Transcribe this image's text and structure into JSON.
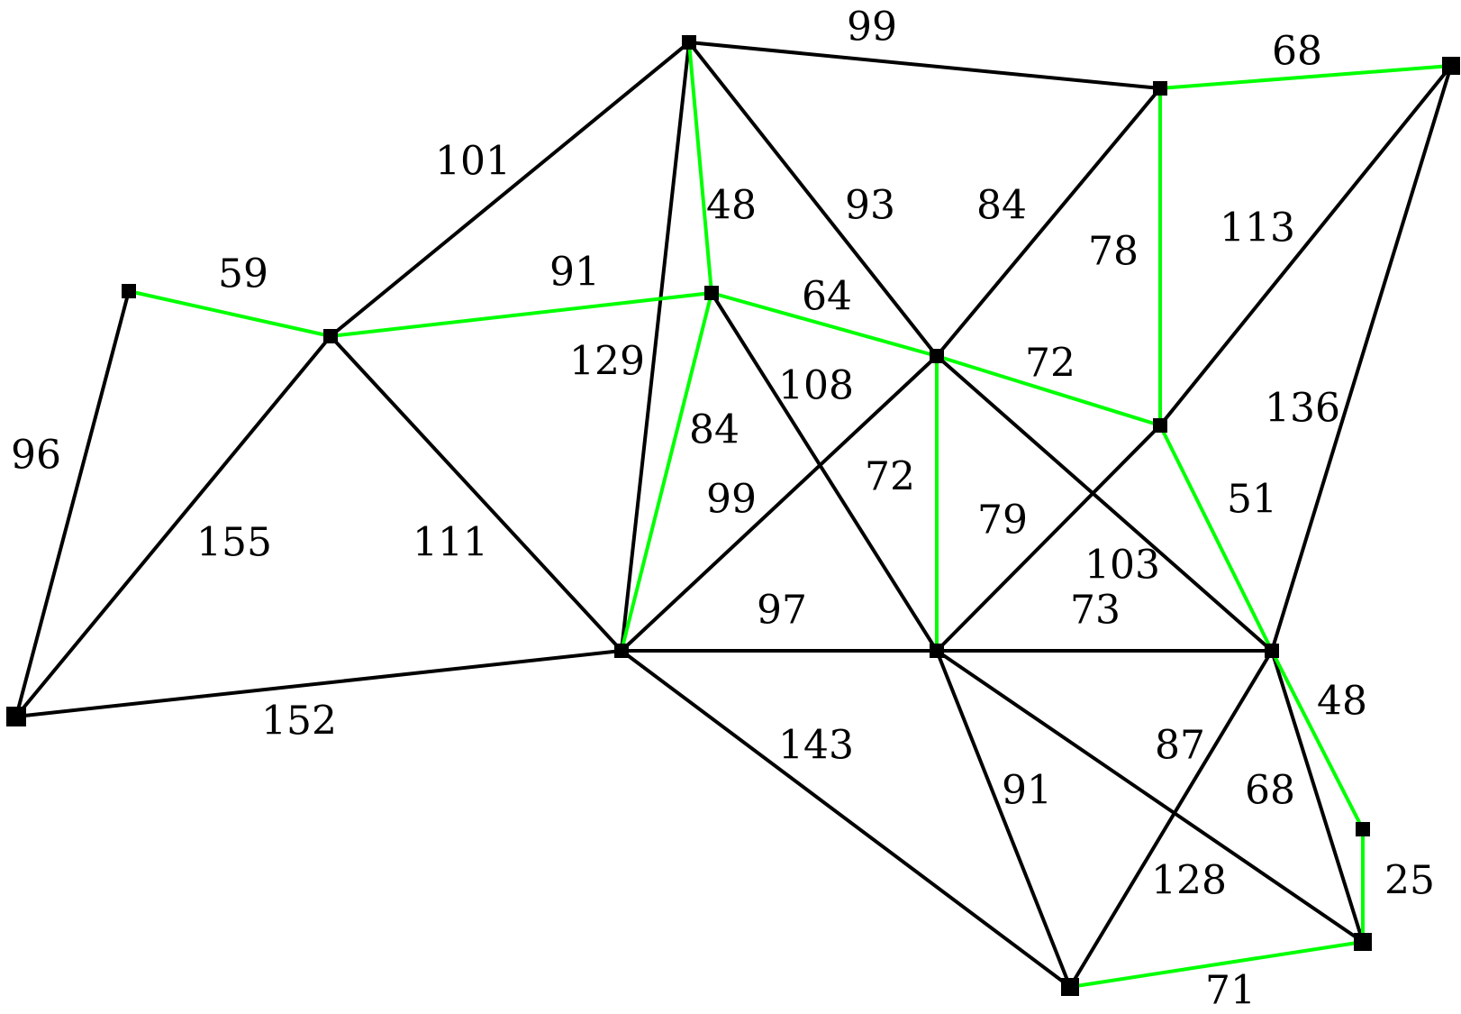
{
  "colors": {
    "background": "#ffffff",
    "edge_default": "#000000",
    "edge_highlight": "#00ff00",
    "node": "#000000",
    "label": "#000000"
  },
  "nodes": [
    {
      "id": "n1"
    },
    {
      "id": "n2"
    },
    {
      "id": "n3"
    },
    {
      "id": "n4"
    },
    {
      "id": "n5"
    },
    {
      "id": "n6"
    },
    {
      "id": "n7"
    },
    {
      "id": "n8"
    },
    {
      "id": "n9"
    },
    {
      "id": "n10"
    },
    {
      "id": "n11"
    },
    {
      "id": "n12"
    },
    {
      "id": "n13"
    },
    {
      "id": "n14"
    },
    {
      "id": "n15"
    },
    {
      "id": "n16"
    },
    {
      "id": "n17"
    }
  ],
  "edges": [
    {
      "from": "n1",
      "to": "n2",
      "weight": "99",
      "highlighted": false
    },
    {
      "from": "n2",
      "to": "n3",
      "weight": "68",
      "highlighted": true
    },
    {
      "from": "n1",
      "to": "n5",
      "weight": "101",
      "highlighted": false
    },
    {
      "from": "n1",
      "to": "n6",
      "weight": "48",
      "highlighted": true
    },
    {
      "from": "n1",
      "to": "n7",
      "weight": "93",
      "highlighted": false
    },
    {
      "from": "n1",
      "to": "n10",
      "weight": "129",
      "highlighted": false
    },
    {
      "from": "n2",
      "to": "n7",
      "weight": "84",
      "highlighted": false
    },
    {
      "from": "n2",
      "to": "n8",
      "weight": "78",
      "highlighted": true
    },
    {
      "from": "n3",
      "to": "n8",
      "weight": "113",
      "highlighted": false
    },
    {
      "from": "n3",
      "to": "n12",
      "weight": "136",
      "highlighted": false
    },
    {
      "from": "n4",
      "to": "n5",
      "weight": "59",
      "highlighted": true
    },
    {
      "from": "n4",
      "to": "n9",
      "weight": "96",
      "highlighted": false
    },
    {
      "from": "n5",
      "to": "n6",
      "weight": "91",
      "highlighted": true
    },
    {
      "from": "n5",
      "to": "n9",
      "weight": "155",
      "highlighted": false
    },
    {
      "from": "n5",
      "to": "n10",
      "weight": "111",
      "highlighted": false
    },
    {
      "from": "n6",
      "to": "n7",
      "weight": "64",
      "highlighted": true
    },
    {
      "from": "n6",
      "to": "n10",
      "weight": "84",
      "highlighted": true
    },
    {
      "from": "n6",
      "to": "n11",
      "weight": "108",
      "highlighted": false
    },
    {
      "from": "n7",
      "to": "n8",
      "weight": "72",
      "highlighted": true
    },
    {
      "from": "n7",
      "to": "n10",
      "weight": "99",
      "highlighted": false
    },
    {
      "from": "n7",
      "to": "n11",
      "weight": "72",
      "highlighted": true
    },
    {
      "from": "n7",
      "to": "n12",
      "weight": "103",
      "highlighted": false
    },
    {
      "from": "n8",
      "to": "n11",
      "weight": "79",
      "highlighted": false
    },
    {
      "from": "n8",
      "to": "n12",
      "weight": "51",
      "highlighted": true
    },
    {
      "from": "n9",
      "to": "n10",
      "weight": "152",
      "highlighted": false
    },
    {
      "from": "n10",
      "to": "n11",
      "weight": "97",
      "highlighted": false
    },
    {
      "from": "n10",
      "to": "n16",
      "weight": "143",
      "highlighted": false
    },
    {
      "from": "n11",
      "to": "n12",
      "weight": "73",
      "highlighted": false
    },
    {
      "from": "n11",
      "to": "n16",
      "weight": "91",
      "highlighted": false
    },
    {
      "from": "n11",
      "to": "n15",
      "weight": "128",
      "highlighted": false
    },
    {
      "from": "n12",
      "to": "n16",
      "weight": "87",
      "highlighted": false
    },
    {
      "from": "n12",
      "to": "n15",
      "weight": "68",
      "highlighted": false
    },
    {
      "from": "n12",
      "to": "n14",
      "weight": "48",
      "highlighted": true
    },
    {
      "from": "n14",
      "to": "n15",
      "weight": "25",
      "highlighted": true
    },
    {
      "from": "n15",
      "to": "n16",
      "weight": "71",
      "highlighted": true
    }
  ]
}
